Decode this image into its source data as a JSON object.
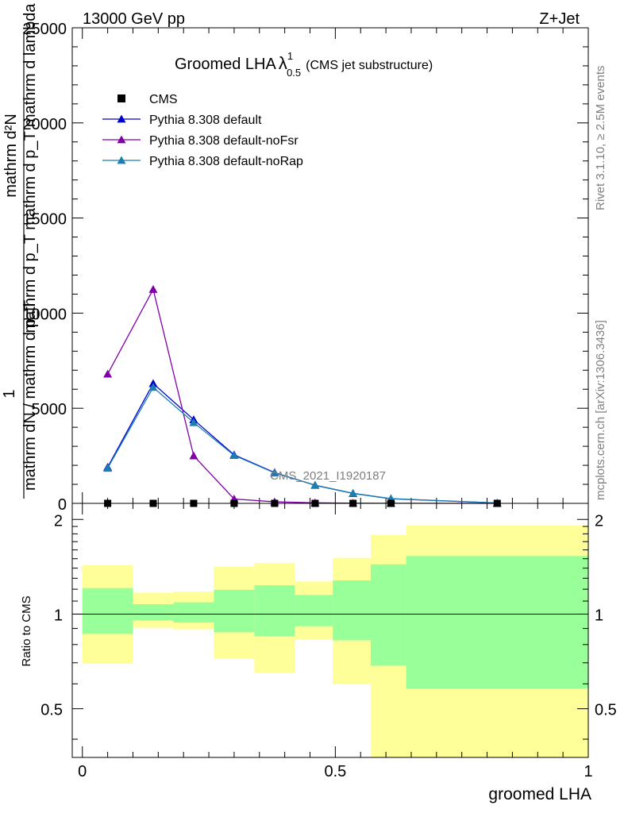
{
  "header": {
    "left": "13000 GeV pp",
    "right": "Z+Jet"
  },
  "side_labels": {
    "rivet": "Rivet 3.1.10, ≥ 2.5M events",
    "mcplots": "mcplots.cern.ch [arXiv:1306.3436]"
  },
  "chart_data": [
    {
      "type": "line",
      "title_main": "Groomed LHA",
      "title_lambda": "λ",
      "title_sup": "1",
      "title_sub": "0.5",
      "title_note": "(CMS jet substructure)",
      "analysis_label": "CMS_2021_I1920187",
      "ylabel_top": "mathrm d²N",
      "ylabel_mid": "mathrm d p_T mathrm d p_T mathrm d lambda",
      "ylabel_one": "1",
      "ylabel_bottom": "mathrm dN / mathrm d p_T",
      "ylim": [
        0,
        25000
      ],
      "xlim": [
        -0.02,
        1.0
      ],
      "yticks": [
        0,
        5000,
        10000,
        15000,
        20000,
        25000
      ],
      "ytick_labels": [
        "0",
        "5000",
        "10000",
        "15000",
        "20000",
        "25000"
      ],
      "legend_placement": "top-left",
      "series": [
        {
          "name": "CMS",
          "color": "#000000",
          "marker": "square",
          "x": [
            0.05,
            0.14,
            0.22,
            0.3,
            0.38,
            0.46,
            0.535,
            0.61,
            0.82
          ],
          "y": [
            0,
            0,
            0,
            0,
            0,
            0,
            0,
            0,
            0
          ]
        },
        {
          "name": "Pythia 8.308 default",
          "color": "#0000cc",
          "marker": "triangle",
          "x": [
            0.05,
            0.14,
            0.22,
            0.3,
            0.38,
            0.46,
            0.535,
            0.61,
            0.82
          ],
          "y": [
            1900,
            6300,
            4400,
            2550,
            1620,
            950,
            520,
            240,
            20
          ]
        },
        {
          "name": "Pythia 8.308 default-noFsr",
          "color": "#8000a8",
          "marker": "triangle",
          "x": [
            0.05,
            0.14,
            0.22,
            0.3,
            0.38,
            0.46,
            0.535,
            0.61,
            0.82
          ],
          "y": [
            6800,
            11250,
            2500,
            230,
            80,
            30,
            10,
            5,
            0
          ]
        },
        {
          "name": "Pythia 8.308 default-noRap",
          "color": "#1a7fb0",
          "marker": "triangle",
          "x": [
            0.05,
            0.14,
            0.22,
            0.3,
            0.38,
            0.46,
            0.535,
            0.61,
            0.82
          ],
          "y": [
            1850,
            6100,
            4250,
            2520,
            1600,
            960,
            530,
            250,
            20
          ]
        }
      ]
    },
    {
      "type": "area",
      "ylabel": "Ratio to CMS",
      "xlabel": "groomed LHA",
      "ylim": [
        0.35,
        2.25
      ],
      "xlim": [
        -0.02,
        1.0
      ],
      "yticks": [
        0.5,
        1,
        2
      ],
      "ytick_labels": [
        "0.5",
        "1",
        "2"
      ],
      "xticks": [
        0,
        0.5,
        1
      ],
      "xtick_labels": [
        "0",
        "0.5",
        "1"
      ],
      "reference_line": 1,
      "bands": [
        {
          "x0": 0.0,
          "x1": 0.1,
          "stat_lo": 0.865,
          "stat_hi": 1.21,
          "tot_lo": 0.695,
          "tot_hi": 1.43
        },
        {
          "x0": 0.1,
          "x1": 0.18,
          "stat_lo": 0.955,
          "stat_hi": 1.075,
          "tot_lo": 0.905,
          "tot_hi": 1.17
        },
        {
          "x0": 0.18,
          "x1": 0.26,
          "stat_lo": 0.94,
          "stat_hi": 1.09,
          "tot_lo": 0.895,
          "tot_hi": 1.18
        },
        {
          "x0": 0.26,
          "x1": 0.34,
          "stat_lo": 0.875,
          "stat_hi": 1.195,
          "tot_lo": 0.72,
          "tot_hi": 1.415
        },
        {
          "x0": 0.34,
          "x1": 0.42,
          "stat_lo": 0.85,
          "stat_hi": 1.235,
          "tot_lo": 0.65,
          "tot_hi": 1.455
        },
        {
          "x0": 0.42,
          "x1": 0.495,
          "stat_lo": 0.915,
          "stat_hi": 1.15,
          "tot_lo": 0.83,
          "tot_hi": 1.27
        },
        {
          "x0": 0.495,
          "x1": 0.57,
          "stat_lo": 0.825,
          "stat_hi": 1.28,
          "tot_lo": 0.6,
          "tot_hi": 1.51
        },
        {
          "x0": 0.57,
          "x1": 0.64,
          "stat_lo": 0.685,
          "stat_hi": 1.44,
          "tot_lo": 0.35,
          "tot_hi": 1.785
        },
        {
          "x0": 0.64,
          "x1": 1.0,
          "stat_lo": 0.58,
          "stat_hi": 1.53,
          "tot_lo": 0.35,
          "tot_hi": 1.915
        }
      ],
      "colors": {
        "stat": "#99ff99",
        "total": "#ffff99"
      }
    }
  ]
}
